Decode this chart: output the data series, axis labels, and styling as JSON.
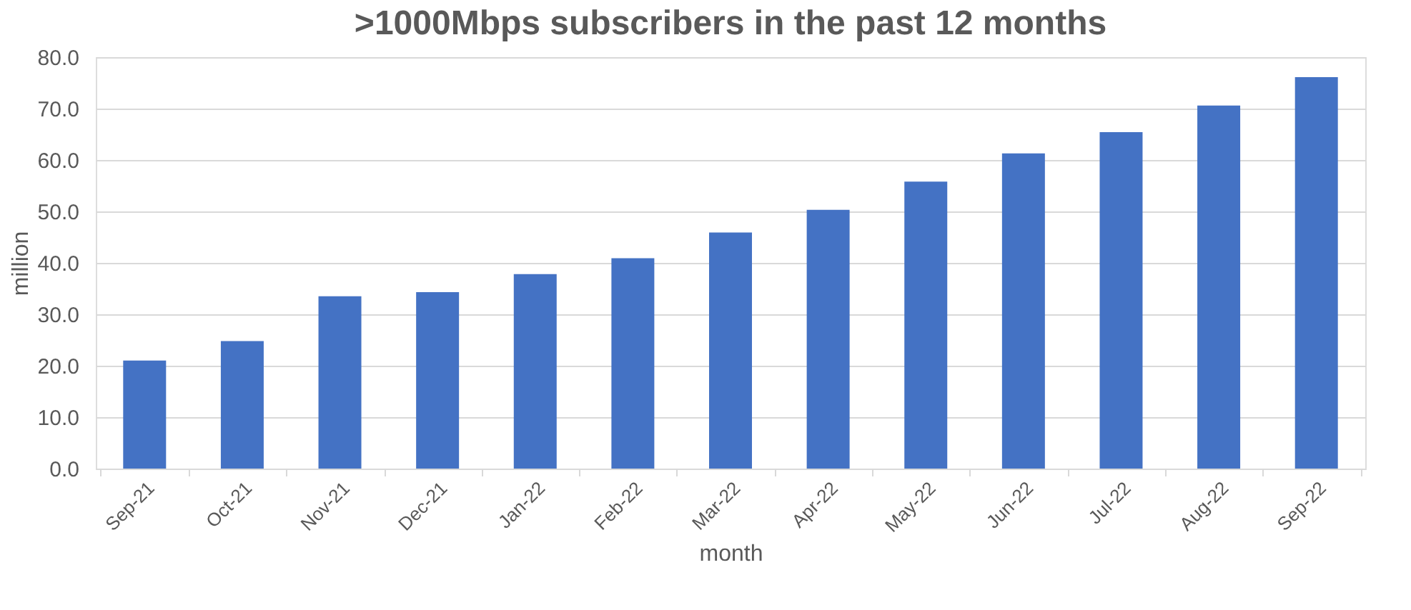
{
  "chart_data": {
    "type": "bar",
    "title": ">1000Mbps subscribers in the past 12 months",
    "xlabel": "month",
    "ylabel": "million",
    "categories": [
      "Sep-21",
      "Oct-21",
      "Nov-21",
      "Dec-21",
      "Jan-22",
      "Feb-22",
      "Mar-22",
      "Apr-22",
      "May-22",
      "Jun-22",
      "Jul-22",
      "Aug-22",
      "Sep-22"
    ],
    "values": [
      21.0,
      24.8,
      33.5,
      34.3,
      37.8,
      40.9,
      45.9,
      50.3,
      55.8,
      61.3,
      65.4,
      70.6,
      76.1
    ],
    "color": "#4472c4",
    "ylim": [
      0,
      80
    ],
    "yticks": [
      {
        "value": 0,
        "label": "0.0"
      },
      {
        "value": 10,
        "label": "10.0"
      },
      {
        "value": 20,
        "label": "20.0"
      },
      {
        "value": 30,
        "label": "30.0"
      },
      {
        "value": 40,
        "label": "40.0"
      },
      {
        "value": 50,
        "label": "50.0"
      },
      {
        "value": 60,
        "label": "60.0"
      },
      {
        "value": 70,
        "label": "70.0"
      },
      {
        "value": 80,
        "label": "80.0"
      }
    ],
    "grid": "y"
  }
}
